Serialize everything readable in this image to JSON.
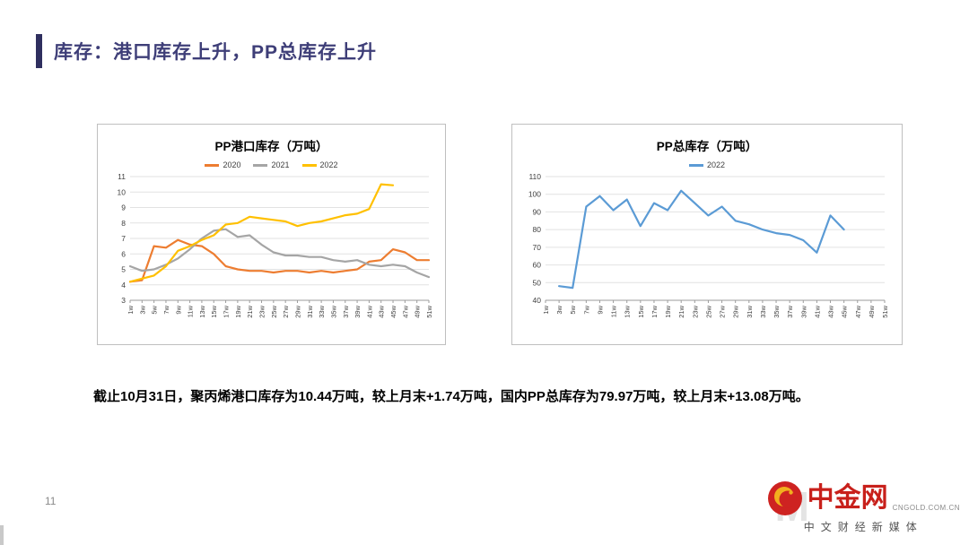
{
  "page": {
    "title": "库存：港口库存上升，PP总库存上升",
    "page_number": "11",
    "summary": "截止10月31日，聚丙烯港口库存为10.44万吨，较上月末+1.74万吨，国内PP总库存为79.97万吨，较上月末+13.08万吨。"
  },
  "colors": {
    "accent_bar": "#2F2F5F",
    "title_text": "#3E3E78",
    "brand_red": "#C8201B",
    "brand_gold": "#F2B01E",
    "series_2020": "#ED7D31",
    "series_2021": "#A5A5A5",
    "series_2022_left": "#FFC000",
    "series_2022_right": "#5B9BD5"
  },
  "footer": {
    "brand": "中金网",
    "domain": "CNGOLD.COM.CN",
    "tagline": "中文财经新媒体",
    "watermark": "M"
  },
  "chart_data": [
    {
      "type": "line",
      "title": "PP港口库存（万吨）",
      "xlabel": "",
      "ylabel": "",
      "ylim": [
        3,
        11
      ],
      "ytick_step": 1,
      "grid": true,
      "legend_position": "top",
      "categories": [
        "1w",
        "3w",
        "5w",
        "7w",
        "9w",
        "11w",
        "13w",
        "15w",
        "17w",
        "19w",
        "21w",
        "23w",
        "25w",
        "27w",
        "29w",
        "31w",
        "33w",
        "35w",
        "37w",
        "39w",
        "41w",
        "43w",
        "45w",
        "47w",
        "49w",
        "51w"
      ],
      "series": [
        {
          "name": "2020",
          "color": "#ED7D31",
          "values": [
            4.2,
            4.3,
            6.5,
            6.4,
            6.9,
            6.6,
            6.5,
            6.0,
            5.2,
            5.0,
            4.9,
            4.9,
            4.8,
            4.9,
            4.9,
            4.8,
            4.9,
            4.8,
            4.9,
            5.0,
            5.5,
            5.6,
            6.3,
            6.1,
            5.6,
            5.6
          ]
        },
        {
          "name": "2021",
          "color": "#A5A5A5",
          "values": [
            5.2,
            4.9,
            5.0,
            5.3,
            5.7,
            6.3,
            7.0,
            7.5,
            7.6,
            7.1,
            7.2,
            6.6,
            6.1,
            5.9,
            5.9,
            5.8,
            5.8,
            5.6,
            5.5,
            5.6,
            5.3,
            5.2,
            5.3,
            5.2,
            4.8,
            4.5
          ]
        },
        {
          "name": "2022",
          "color": "#FFC000",
          "values": [
            4.2,
            4.4,
            4.6,
            5.2,
            6.2,
            6.5,
            6.9,
            7.2,
            7.9,
            8.0,
            8.4,
            8.3,
            8.2,
            8.1,
            7.8,
            8.0,
            8.1,
            8.3,
            8.5,
            8.6,
            8.9,
            10.5,
            10.44,
            null,
            null,
            null
          ]
        }
      ]
    },
    {
      "type": "line",
      "title": "PP总库存（万吨）",
      "xlabel": "",
      "ylabel": "",
      "ylim": [
        40,
        110
      ],
      "ytick_step": 10,
      "grid": true,
      "legend_position": "top",
      "categories": [
        "1w",
        "3w",
        "5w",
        "7w",
        "9w",
        "11w",
        "13w",
        "15w",
        "17w",
        "19w",
        "21w",
        "23w",
        "25w",
        "27w",
        "29w",
        "31w",
        "33w",
        "35w",
        "37w",
        "39w",
        "41w",
        "43w",
        "45w",
        "47w",
        "49w",
        "51w"
      ],
      "series": [
        {
          "name": "2022",
          "color": "#5B9BD5",
          "values": [
            null,
            48,
            47,
            93,
            99,
            91,
            97,
            82,
            95,
            91,
            102,
            95,
            88,
            93,
            85,
            83,
            80,
            78,
            77,
            74,
            67,
            88,
            80,
            null,
            null,
            null
          ]
        }
      ]
    }
  ]
}
